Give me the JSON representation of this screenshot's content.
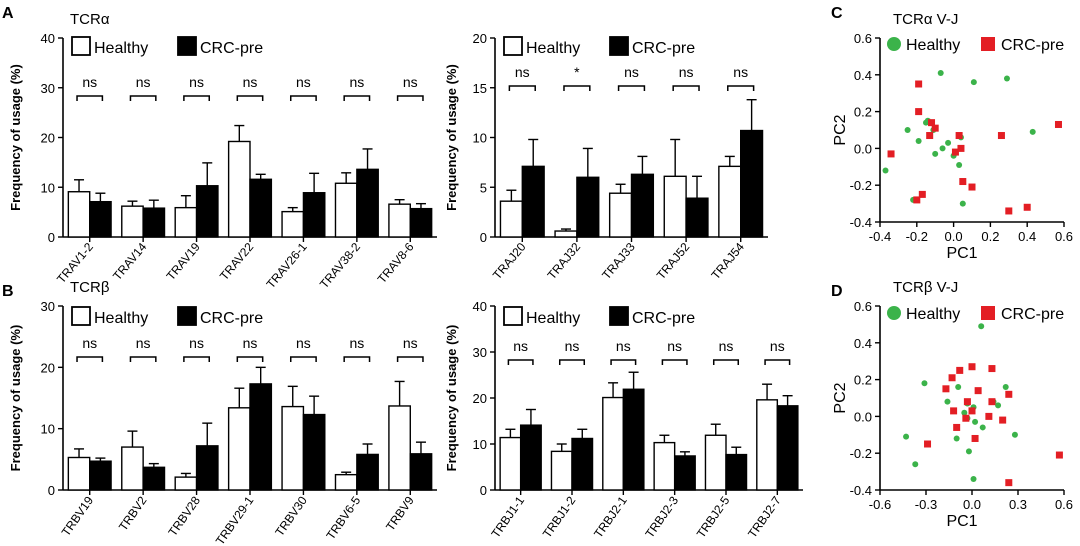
{
  "panels": {
    "A": "A",
    "B": "B",
    "C": "C",
    "D": "D"
  },
  "colors": {
    "healthy_fill": "#ffffff",
    "crc_fill": "#000000",
    "green": "#3bb34a",
    "red": "#e31e24"
  },
  "chart_data": [
    {
      "id": "A1",
      "type": "bar",
      "panel_label": "A",
      "title": "TCRα",
      "ylabel": "Frequency of usage (%)",
      "ylim": [
        0,
        40
      ],
      "yticks": [
        0,
        10,
        20,
        30,
        40
      ],
      "categories": [
        "TRAV1-2",
        "TRAV14",
        "TRAV19",
        "TRAV22",
        "TRAV26-1",
        "TRAV38-2",
        "TRAV8-6"
      ],
      "series": [
        {
          "name": "Healthy",
          "values": [
            9.1,
            6.2,
            5.9,
            19.2,
            5.1,
            10.8,
            6.6
          ],
          "errors": [
            2.4,
            1.0,
            2.4,
            3.2,
            0.8,
            2.1,
            0.9
          ]
        },
        {
          "name": "CRC-pre",
          "values": [
            7.1,
            5.8,
            10.3,
            11.6,
            8.9,
            13.6,
            5.7
          ],
          "errors": [
            1.7,
            1.6,
            4.6,
            1.0,
            3.9,
            4.1,
            1.0
          ]
        }
      ],
      "significance": [
        "ns",
        "ns",
        "ns",
        "ns",
        "ns",
        "ns",
        "ns"
      ],
      "legend": [
        "Healthy",
        "CRC-pre"
      ]
    },
    {
      "id": "A2",
      "type": "bar",
      "panel_label": "",
      "title": "",
      "ylabel": "Frequency of usage (%)",
      "ylim": [
        0,
        20
      ],
      "yticks": [
        0,
        5,
        10,
        15,
        20
      ],
      "categories": [
        "TRAJ20",
        "TRAJ32",
        "TRAJ33",
        "TRAJ52",
        "TRAJ54"
      ],
      "series": [
        {
          "name": "Healthy",
          "values": [
            3.6,
            0.6,
            4.4,
            6.1,
            7.1
          ],
          "errors": [
            1.1,
            0.2,
            0.9,
            3.7,
            1.0
          ]
        },
        {
          "name": "CRC-pre",
          "values": [
            7.1,
            6.0,
            6.3,
            3.9,
            10.7
          ],
          "errors": [
            2.7,
            2.9,
            1.8,
            2.2,
            3.1
          ]
        }
      ],
      "significance": [
        "ns",
        "*",
        "ns",
        "ns",
        "ns"
      ],
      "legend": [
        "Healthy",
        "CRC-pre"
      ]
    },
    {
      "id": "B1",
      "type": "bar",
      "panel_label": "B",
      "title": "TCRβ",
      "ylabel": "Frequency of usage (%)",
      "ylim": [
        0,
        30
      ],
      "yticks": [
        0,
        10,
        20,
        30
      ],
      "categories": [
        "TRBV19",
        "TRBV2",
        "TRBV28",
        "TRBV29-1",
        "TRBV30",
        "TRBV6-5",
        "TRBV9"
      ],
      "series": [
        {
          "name": "Healthy",
          "values": [
            5.3,
            7.0,
            2.1,
            13.4,
            13.6,
            2.5,
            13.7
          ],
          "errors": [
            1.4,
            2.6,
            0.6,
            3.2,
            3.3,
            0.4,
            4.0
          ]
        },
        {
          "name": "CRC-pre",
          "values": [
            4.7,
            3.7,
            7.2,
            17.3,
            12.3,
            5.8,
            5.9
          ],
          "errors": [
            0.5,
            0.6,
            3.7,
            2.7,
            3.0,
            1.7,
            1.9
          ]
        }
      ],
      "significance": [
        "ns",
        "ns",
        "ns",
        "ns",
        "ns",
        "ns",
        "ns"
      ],
      "legend": [
        "Healthy",
        "CRC-pre"
      ]
    },
    {
      "id": "B2",
      "type": "bar",
      "panel_label": "",
      "title": "",
      "ylabel": "Frequency of usage (%)",
      "ylim": [
        0,
        40
      ],
      "yticks": [
        0,
        10,
        20,
        30,
        40
      ],
      "categories": [
        "TRBJ1-1",
        "TRBJ1-2",
        "TRBJ2-1",
        "TRBJ2-3",
        "TRBJ2-5",
        "TRBJ2-7"
      ],
      "series": [
        {
          "name": "Healthy",
          "values": [
            11.4,
            8.4,
            20.1,
            10.3,
            11.9,
            19.6
          ],
          "errors": [
            1.8,
            1.6,
            3.2,
            1.6,
            2.4,
            3.4
          ]
        },
        {
          "name": "CRC-pre",
          "values": [
            14.1,
            11.2,
            21.9,
            7.4,
            7.7,
            18.3
          ],
          "errors": [
            3.4,
            2.0,
            3.7,
            0.9,
            1.6,
            2.2
          ]
        }
      ],
      "significance": [
        "ns",
        "ns",
        "ns",
        "ns",
        "ns",
        "ns"
      ],
      "legend": [
        "Healthy",
        "CRC-pre"
      ]
    },
    {
      "id": "C",
      "type": "scatter",
      "panel_label": "C",
      "title": "TCRα V-J",
      "xlabel": "PC1",
      "ylabel": "PC2",
      "xlim": [
        -0.4,
        0.6
      ],
      "ylim": [
        -0.4,
        0.6
      ],
      "xticks": [
        -0.4,
        -0.2,
        0.0,
        0.2,
        0.4,
        0.6
      ],
      "yticks": [
        -0.4,
        -0.2,
        0.0,
        0.2,
        0.4,
        0.6
      ],
      "xtick_labels": [
        "-0.4",
        "-0.2",
        "0.0",
        "0.2",
        "0.4",
        "0.6"
      ],
      "ytick_labels": [
        "-0.4",
        "-0.2",
        "0.0",
        "0.2",
        "0.4",
        "0.6"
      ],
      "legend": [
        "Healthy",
        "CRC-pre"
      ],
      "series": [
        {
          "name": "Healthy",
          "marker": "circle",
          "color": "#3bb34a",
          "points": [
            [
              -0.07,
              0.41
            ],
            [
              0.11,
              0.36
            ],
            [
              0.29,
              0.38
            ],
            [
              -0.14,
              0.15
            ],
            [
              -0.25,
              0.1
            ],
            [
              -0.19,
              0.04
            ],
            [
              0.04,
              0.06
            ],
            [
              -0.11,
              0.1
            ],
            [
              -0.03,
              0.03
            ],
            [
              -0.06,
              0.0
            ],
            [
              0.0,
              -0.04
            ],
            [
              -0.1,
              -0.03
            ],
            [
              0.03,
              -0.09
            ],
            [
              0.43,
              0.09
            ],
            [
              -0.37,
              -0.12
            ],
            [
              -0.22,
              -0.28
            ],
            [
              0.05,
              -0.3
            ],
            [
              -0.15,
              0.14
            ]
          ]
        },
        {
          "name": "CRC-pre",
          "marker": "square",
          "color": "#e31e24",
          "points": [
            [
              -0.19,
              0.35
            ],
            [
              -0.19,
              0.2
            ],
            [
              -0.12,
              0.14
            ],
            [
              -0.1,
              0.11
            ],
            [
              -0.13,
              0.07
            ],
            [
              0.03,
              0.07
            ],
            [
              -0.34,
              -0.03
            ],
            [
              0.04,
              0.0
            ],
            [
              0.01,
              -0.02
            ],
            [
              0.26,
              0.07
            ],
            [
              0.57,
              0.13
            ],
            [
              0.05,
              -0.18
            ],
            [
              0.1,
              -0.21
            ],
            [
              -0.17,
              -0.25
            ],
            [
              -0.2,
              -0.28
            ],
            [
              0.3,
              -0.34
            ],
            [
              0.4,
              -0.32
            ]
          ]
        }
      ]
    },
    {
      "id": "D",
      "type": "scatter",
      "panel_label": "D",
      "title": "TCRβ V-J",
      "xlabel": "PC1",
      "ylabel": "PC2",
      "xlim": [
        -0.6,
        0.6
      ],
      "ylim": [
        -0.4,
        0.6
      ],
      "xticks": [
        -0.6,
        -0.3,
        0.0,
        0.3,
        0.6
      ],
      "yticks": [
        -0.4,
        -0.2,
        0.0,
        0.2,
        0.4,
        0.6
      ],
      "xtick_labels": [
        "-0.6",
        "-0.3",
        "0.0",
        "0.3",
        "0.6"
      ],
      "ytick_labels": [
        "-0.4",
        "-0.2",
        "0.0",
        "0.2",
        "0.4",
        "0.6"
      ],
      "legend": [
        "Healthy",
        "CRC-pre"
      ],
      "series": [
        {
          "name": "Healthy",
          "marker": "circle",
          "color": "#3bb34a",
          "points": [
            [
              0.06,
              0.49
            ],
            [
              -0.31,
              0.18
            ],
            [
              -0.09,
              0.16
            ],
            [
              0.22,
              0.16
            ],
            [
              -0.03,
              0.07
            ],
            [
              -0.16,
              0.08
            ],
            [
              0.17,
              0.06
            ],
            [
              -0.05,
              0.02
            ],
            [
              0.01,
              0.05
            ],
            [
              -0.03,
              -0.01
            ],
            [
              0.02,
              -0.03
            ],
            [
              0.07,
              -0.06
            ],
            [
              0.28,
              -0.1
            ],
            [
              -0.1,
              -0.12
            ],
            [
              -0.43,
              -0.11
            ],
            [
              -0.37,
              -0.26
            ],
            [
              -0.02,
              -0.19
            ],
            [
              0.01,
              -0.34
            ],
            [
              0.14,
              0.08
            ]
          ]
        },
        {
          "name": "CRC-pre",
          "marker": "square",
          "color": "#e31e24",
          "points": [
            [
              -0.08,
              0.25
            ],
            [
              0.0,
              0.27
            ],
            [
              0.13,
              0.26
            ],
            [
              -0.13,
              0.21
            ],
            [
              -0.17,
              0.15
            ],
            [
              0.04,
              0.14
            ],
            [
              0.24,
              0.12
            ],
            [
              -0.03,
              0.08
            ],
            [
              0.13,
              0.08
            ],
            [
              -0.12,
              0.03
            ],
            [
              0.0,
              0.03
            ],
            [
              0.11,
              0.0
            ],
            [
              -0.1,
              -0.06
            ],
            [
              0.2,
              -0.02
            ],
            [
              0.02,
              -0.12
            ],
            [
              -0.29,
              -0.15
            ],
            [
              0.57,
              -0.21
            ],
            [
              0.24,
              -0.36
            ],
            [
              -0.04,
              -0.01
            ]
          ]
        }
      ]
    }
  ]
}
